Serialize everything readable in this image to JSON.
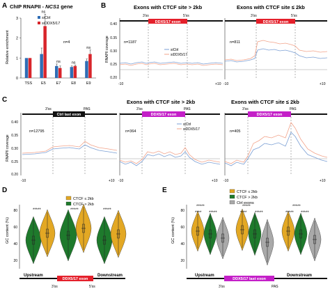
{
  "panelA": {
    "letter": "A",
    "title_prefix": "ChIP RNAPII - ",
    "title_gene": "NCS1",
    "title_suffix": " gene",
    "ylabel": "Relative enrichment",
    "legend": [
      "siCtrl",
      "siDDX5/17"
    ],
    "colors": {
      "siCtrl": "#2f6db5",
      "siDDX5/17": "#d8252b"
    },
    "n_label": "n=4",
    "ns_label": "ns",
    "chart_data": {
      "type": "bar",
      "categories": [
        "TSS",
        "E5",
        "E7",
        "E8",
        "E9"
      ],
      "series": [
        {
          "name": "siCtrl",
          "values": [
            1.0,
            1.2,
            0.6,
            0.55,
            0.85
          ],
          "err": [
            0.0,
            0.3,
            0.1,
            0.05,
            0.1
          ]
        },
        {
          "name": "siDDX5/17",
          "values": [
            1.0,
            2.6,
            0.5,
            0.6,
            1.2
          ],
          "err": [
            0.0,
            0.6,
            0.1,
            0.05,
            0.2
          ]
        }
      ],
      "ns": [
        false,
        true,
        true,
        true,
        true
      ],
      "yticks": [
        0,
        1,
        2,
        3
      ],
      "ylim": [
        0,
        3
      ]
    }
  },
  "panelB": {
    "letter": "B",
    "ylabel": "RNAPII coverage",
    "yticks": [
      "0.40",
      "0.35",
      "0.30",
      "0.25",
      "0.20"
    ],
    "xticks": [
      "-10",
      "+10"
    ],
    "left": {
      "title": "Exons with CTCF site > 2kb",
      "exon": "DDX5/17 exon",
      "n": "n=1187",
      "ss3": "3'ss",
      "ss5": "5'ss"
    },
    "right": {
      "title": "Exons with CTCF site ≤ 2kb",
      "exon": "DDX5/17 exon",
      "n": "n=811",
      "ss3": "3'ss",
      "ss5": "5'ss"
    },
    "legend": [
      "siCtrl",
      "siDDX5/17"
    ],
    "colors": {
      "siCtrl": "#7b9fd4",
      "siDDX5/17": "#f2a38a"
    }
  },
  "panelC": {
    "letter": "C",
    "ylabel": "RNAPII coverage",
    "yticks": [
      "0.40",
      "0.35",
      "0.30",
      "0.25",
      "0.20"
    ],
    "xticks": [
      "-10",
      "+10"
    ],
    "sub1": {
      "exon": "Ctrl last exon",
      "n": "n=12795",
      "ss3": "3'ss",
      "pas": "PAS"
    },
    "sub2": {
      "title": "Exons with CTCF site > 2kb",
      "exon": "DDX5/17 exon",
      "n": "n=364",
      "ss3": "3'ss",
      "pas": "PAS"
    },
    "sub3": {
      "title": "Exons with CTCF site ≤ 2kb",
      "exon": "DDX5/17 exon",
      "n": "n=405",
      "ss3": "3'ss",
      "pas": "PAS"
    },
    "legend": [
      "siCtrl",
      "siDDX5/17"
    ]
  },
  "panelD": {
    "letter": "D",
    "ylabel": "GC content (%)",
    "yticks": [
      "80",
      "60",
      "40",
      "20"
    ],
    "legend": [
      "CTCF ≤ 2kb",
      "CTCF > 2kb"
    ],
    "colors": {
      "le2": "#e3a824",
      "gt2": "#1e7a2c"
    },
    "stars": "*****",
    "groups": [
      "Upstream",
      "DDX5/17 exon",
      "Downstream"
    ],
    "ss3": "3'ss",
    "ss5": "5'ss"
  },
  "panelE": {
    "letter": "E",
    "ylabel": "GC content (%)",
    "yticks": [
      "80",
      "60",
      "40",
      "20"
    ],
    "legend": [
      "CTCF ≤ 2kb",
      "CTCF > 2kb",
      "Ctrl exons"
    ],
    "colors": {
      "le2": "#e3a824",
      "gt2": "#1e7a2c",
      "ctrl": "#a9a9a9"
    },
    "stars": "*****",
    "stars_short": "****",
    "groups": [
      "Upstream",
      "DDX5/17 last exon",
      "Downstream"
    ],
    "ss3": "3'ss",
    "pas": "PAS"
  },
  "accent": {
    "exon_red": "#e4202b",
    "exon_magenta": "#c41fc8",
    "exon_black": "#111111"
  }
}
